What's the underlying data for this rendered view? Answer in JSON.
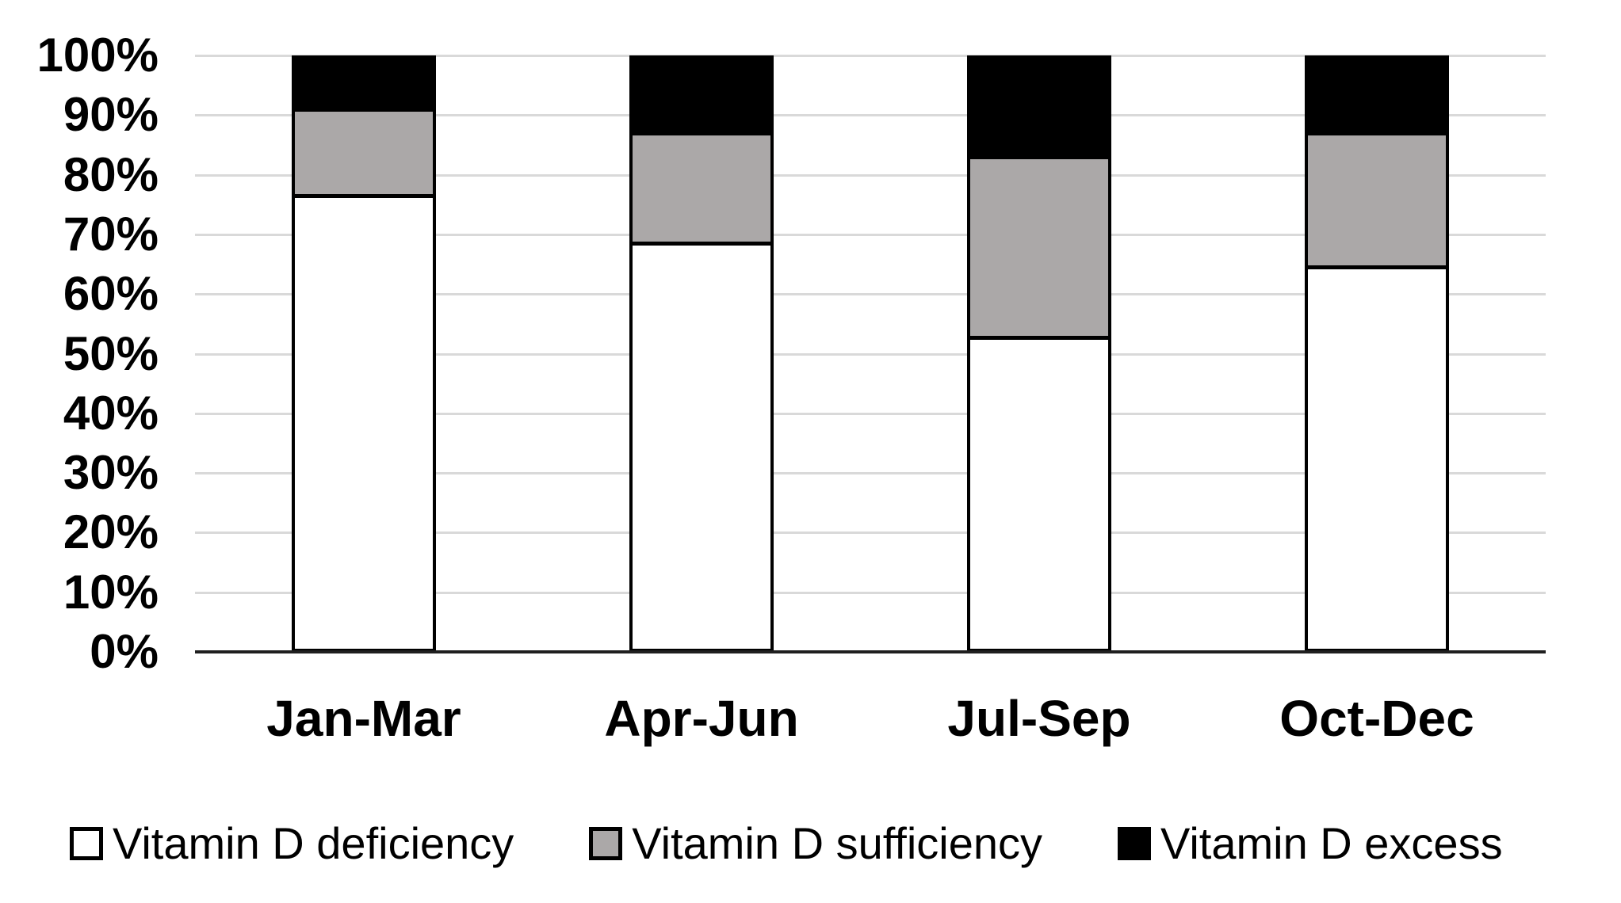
{
  "chart_data": {
    "type": "bar",
    "variant": "stacked-100-percent",
    "title": "",
    "xlabel": "",
    "ylabel": "",
    "categories": [
      "Jan-Mar",
      "Apr-Jun",
      "Jul-Sep",
      "Oct-Dec"
    ],
    "series": [
      {
        "name": "Vitamin D deficiency",
        "fill": "#ffffff",
        "values": [
          77,
          69,
          53,
          65
        ]
      },
      {
        "name": "Vitamin D sufficiency",
        "fill": "#aba8a8",
        "values": [
          14,
          18,
          30,
          22
        ]
      },
      {
        "name": "Vitamin D excess",
        "fill": "#000000",
        "values": [
          9,
          13,
          17,
          13
        ]
      }
    ],
    "y_ticks": [
      "100%",
      "90%",
      "80%",
      "70%",
      "60%",
      "50%",
      "40%",
      "30%",
      "20%",
      "10%",
      "0%"
    ],
    "y_tick_values": [
      100,
      90,
      80,
      70,
      60,
      50,
      40,
      30,
      20,
      10,
      0
    ],
    "ylim": [
      0,
      100
    ],
    "grid": true,
    "legend_position": "bottom"
  },
  "legend": {
    "items": [
      {
        "label": "Vitamin D deficiency",
        "fill": "#ffffff"
      },
      {
        "label": "Vitamin D sufficiency",
        "fill": "#aba8a8"
      },
      {
        "label": "Vitamin D excess",
        "fill": "#000000"
      }
    ]
  },
  "colors": {
    "background": "#ffffff",
    "gridline": "#d9d9d9",
    "axis_line": "#1f1f1f",
    "bar_border": "#000000",
    "text": "#000000"
  }
}
